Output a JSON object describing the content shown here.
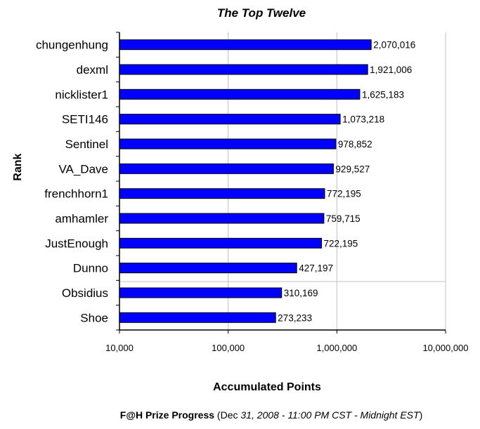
{
  "chart_data": {
    "type": "bar",
    "orientation": "horizontal",
    "title": "The Top Twelve",
    "xlabel": "Accumulated Points",
    "ylabel": "Rank",
    "x_scale": "log",
    "xlim": [
      10000,
      10000000
    ],
    "x_ticks": [
      "10,000",
      "100,000",
      "1,000,000",
      "10,000,000"
    ],
    "grid": "vertical",
    "categories": [
      "chungenhung",
      "dexml",
      "nicklister1",
      "SETI146",
      "Sentinel",
      "VA_Dave",
      "frenchhorn1",
      "amhamler",
      "JustEnough",
      "Dunno",
      "Obsidius",
      "Shoe"
    ],
    "values": [
      2070016,
      1921006,
      1625183,
      1073218,
      978852,
      929527,
      772195,
      759715,
      722195,
      427197,
      310169,
      273233
    ],
    "data_labels": [
      "2,070,016",
      "1,921,006",
      "1,625,183",
      "1,073,218",
      "978,852",
      "929,527",
      "772,195",
      "759,715",
      "722,195",
      "427,197",
      "310,169",
      "273,233"
    ],
    "bar_color": "#0000ff"
  },
  "footer": {
    "bold_text": "F@H Prize Progress",
    "text_open": " (Dec ",
    "text_italic": "31, 2008 - 11:00 PM CST - Midnight EST",
    "text_close": ")"
  }
}
